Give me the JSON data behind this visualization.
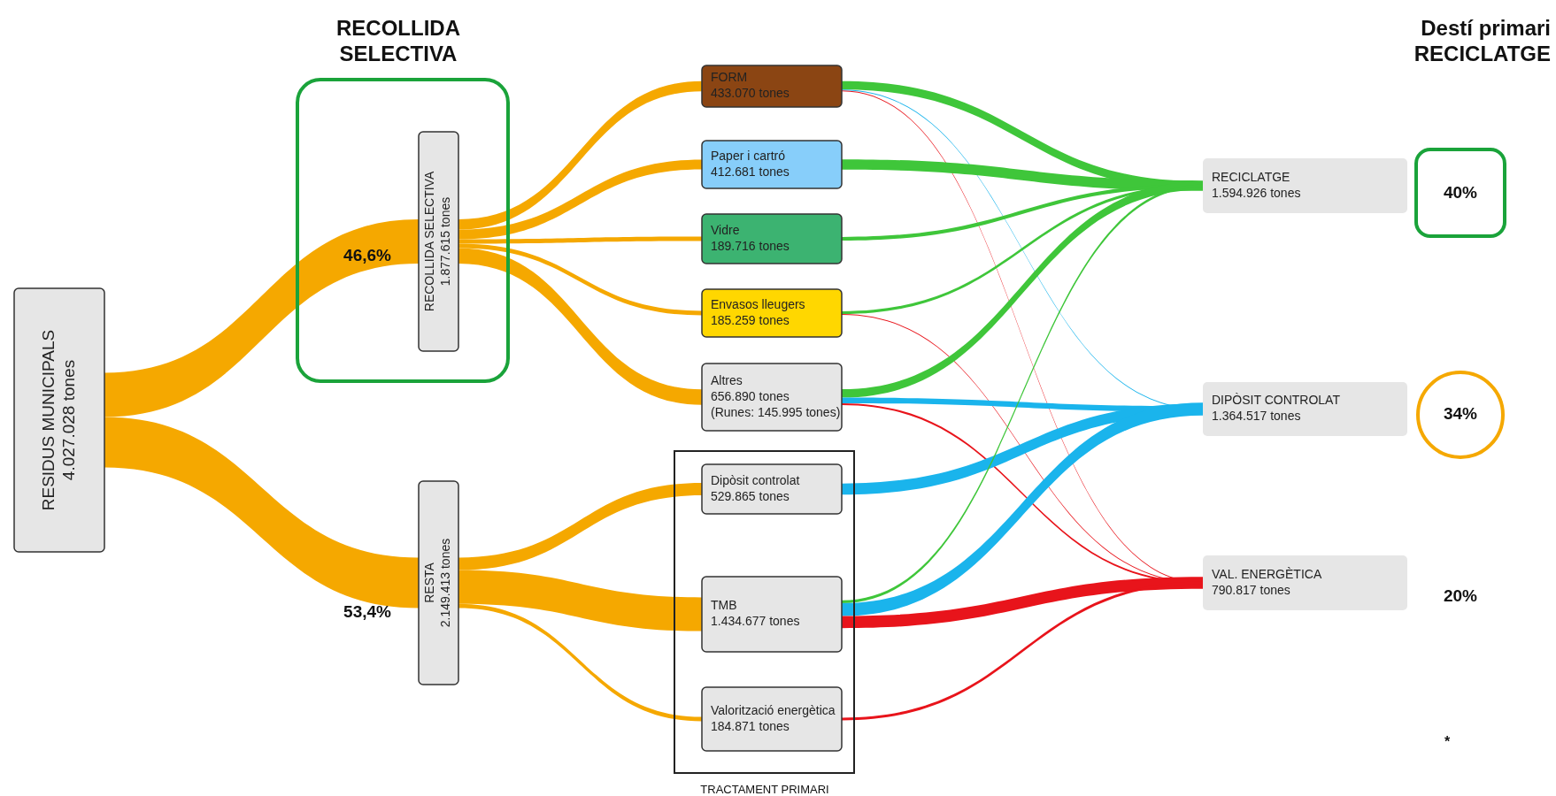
{
  "chart_data": {
    "type": "other",
    "categories": [
      "RESIDUS MUNICIPALS",
      "RECOLLIDA SELECTIVA",
      "RESTA",
      "FORM",
      "Paper i cartró",
      "Vidre",
      "Envasos lleugers",
      "Altres",
      "Dipòsit controlat",
      "TMB",
      "Valorització energètica",
      "RECICLATGE",
      "DIPÒSIT CONTROLAT",
      "VAL. ENERGÈTICA"
    ],
    "values": [
      4027028,
      1877615,
      2149413,
      433070,
      412681,
      189716,
      185259,
      656890,
      529865,
      1434677,
      184871,
      1594926,
      1364517,
      790817
    ],
    "value_labels": [
      "4.027.028 tones",
      "1.877.615 tones",
      "2.149.413 tones",
      "433.070 tones",
      "412.681 tones",
      "189.716 tones",
      "185.259 tones",
      "656.890 tones\n(Runes: 145.995 tones)",
      "529.865 tones",
      "1.434.677 tones",
      "184.871 tones",
      "1.594.926 tones",
      "1.364.517 tones",
      "790.817 tones"
    ],
    "colors": [
      "#e6e6e6",
      "#e6e6e6",
      "#e6e6e6",
      "#8b4513",
      "#87cefa",
      "#3cb371",
      "#ffd700",
      "#e6e6e6",
      "#e6e6e6",
      "#e6e6e6",
      "#e6e6e6",
      "#e6e6e6",
      "#e6e6e6",
      "#e6e6e6"
    ],
    "annotations": [
      "RECOLLIDA\nSELECTIVA",
      "Destí primari\nRECICLATGE",
      "TRACTAMENT PRIMARI",
      "46,6%",
      "53,4%",
      "40%",
      "34%",
      "20%",
      "*"
    ]
  }
}
